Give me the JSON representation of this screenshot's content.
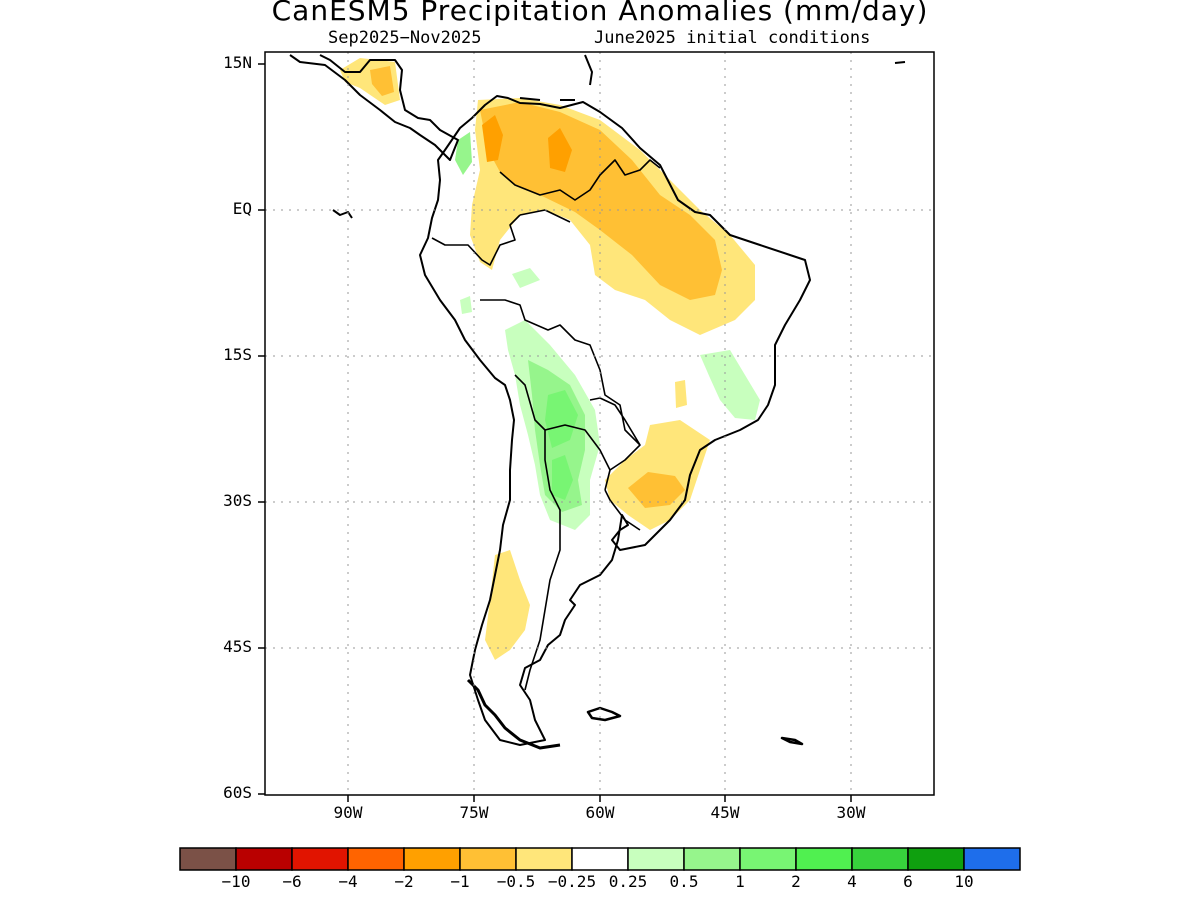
{
  "title": "CanESM5 Precipitation Anomalies (mm/day)",
  "subtitle_left": "Sep2025−Nov2025",
  "subtitle_right": "June2025 initial conditions",
  "lat_ticks": [
    "15N",
    "EQ",
    "15S",
    "30S",
    "45S",
    "60S"
  ],
  "lon_ticks": [
    "90W",
    "75W",
    "60W",
    "45W",
    "30W"
  ],
  "colorbar": {
    "colors": [
      "#7b5147",
      "#b90000",
      "#e11400",
      "#ff6400",
      "#ffa000",
      "#ffc034",
      "#ffe67a",
      "#ffffff",
      "#c8ffbe",
      "#96f58c",
      "#78f573",
      "#50f050",
      "#37d23c",
      "#0fa00f",
      "#1e6eeb"
    ],
    "labels": [
      "−10",
      "−6",
      "−4",
      "−2",
      "−1",
      "−0.5",
      "−0.25",
      "0.25",
      "0.5",
      "1",
      "2",
      "4",
      "6",
      "10"
    ]
  }
}
